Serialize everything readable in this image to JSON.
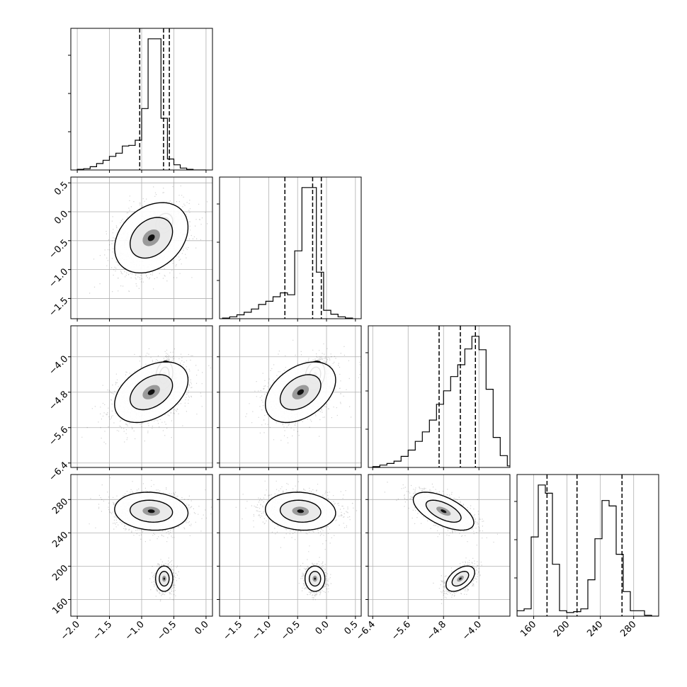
{
  "chart_data": {
    "type": "corner",
    "title": "",
    "colors": {
      "line": "#000000",
      "grid": "#b0b0b0",
      "background": "#ffffff"
    },
    "grid": true,
    "parameters": [
      {
        "range": [
          -2.1,
          0.1
        ],
        "ticks": [
          {
            "value": -2.0,
            "label": "−2.0"
          },
          {
            "value": -1.5,
            "label": "−1.5"
          },
          {
            "value": -1.0,
            "label": "−1.0"
          },
          {
            "value": -0.5,
            "label": "−0.5"
          },
          {
            "value": 0.0,
            "label": "0.0"
          }
        ],
        "quantiles": [
          -1.03,
          -0.66,
          -0.57
        ],
        "histogram": {
          "edges_start": -2.0,
          "bin_width": 0.1,
          "counts": [
            1,
            2,
            5,
            10,
            15,
            21,
            26,
            37,
            38,
            46,
            95,
            203,
            203,
            80,
            17,
            8,
            3,
            1,
            0,
            0
          ]
        }
      },
      {
        "range": [
          -1.85,
          0.6
        ],
        "ticks": [
          {
            "value": -1.5,
            "label": "−1.5"
          },
          {
            "value": -1.0,
            "label": "−1.0"
          },
          {
            "value": -0.5,
            "label": "−0.5"
          },
          {
            "value": 0.0,
            "label": "0.0"
          },
          {
            "value": 0.5,
            "label": "0.5"
          }
        ],
        "quantiles": [
          -0.72,
          -0.24,
          -0.09
        ],
        "histogram": {
          "edges_start": -1.8,
          "bin_width": 0.125,
          "counts": [
            1,
            3,
            6,
            10,
            15,
            22,
            27,
            34,
            40,
            37,
            105,
            203,
            203,
            72,
            13,
            7,
            3,
            1
          ]
        }
      },
      {
        "range": [
          -6.5,
          -3.3
        ],
        "ticks": [
          {
            "value": -6.4,
            "label": "−6.4"
          },
          {
            "value": -5.6,
            "label": "−5.6"
          },
          {
            "value": -4.8,
            "label": "−4.8"
          },
          {
            "value": -4.0,
            "label": "−4.0"
          }
        ],
        "quantiles": [
          -4.9,
          -4.42,
          -4.08
        ],
        "histogram": {
          "edges_start": -6.4,
          "bin_width": 0.16,
          "counts": [
            1,
            3,
            5,
            8,
            14,
            22,
            33,
            45,
            60,
            80,
            97,
            115,
            130,
            150,
            166,
            149,
            99,
            38,
            15,
            2
          ]
        }
      },
      {
        "range": [
          140,
          310
        ],
        "ticks": [
          {
            "value": 160,
            "label": "160"
          },
          {
            "value": 200,
            "label": "200"
          },
          {
            "value": 240,
            "label": "240"
          },
          {
            "value": 280,
            "label": "280"
          }
        ],
        "quantiles": [
          176,
          212,
          266
        ],
        "histogram": {
          "edges_start": 140,
          "bin_width": 8.5,
          "counts": [
            6,
            8,
            87,
            144,
            135,
            57,
            6,
            4,
            5,
            8,
            40,
            85,
            127,
            121,
            68,
            27,
            6,
            6,
            1,
            0
          ]
        }
      }
    ],
    "components": [
      {
        "mean": [
          -0.65,
          -0.2,
          -4.42,
          185
        ],
        "sd": [
          0.07,
          0.09,
          0.17,
          8
        ],
        "corr": [
          [
            1,
            0.2,
            0.2,
            0.0
          ],
          [
            0.2,
            1,
            0.2,
            0.0
          ],
          [
            0.2,
            0.2,
            1,
            0.5
          ],
          [
            0.0,
            0.0,
            0.5,
            1
          ]
        ],
        "weight": 0.45
      },
      {
        "mean": [
          -0.85,
          -0.45,
          -4.8,
          266
        ],
        "sd": [
          0.3,
          0.32,
          0.36,
          12
        ],
        "corr": [
          [
            1,
            0.3,
            0.4,
            -0.1
          ],
          [
            0.3,
            1,
            0.4,
            -0.1
          ],
          [
            0.4,
            0.4,
            1,
            -0.6
          ],
          [
            -0.1,
            -0.1,
            -0.6,
            1
          ]
        ],
        "weight": 0.55
      }
    ]
  }
}
